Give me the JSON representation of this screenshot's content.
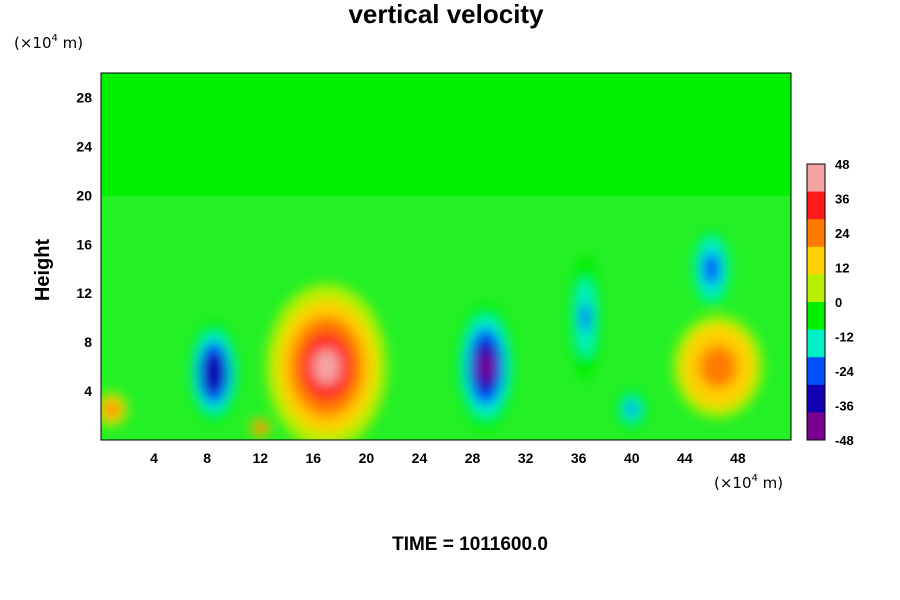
{
  "chart_data": {
    "type": "heatmap",
    "title": "vertical velocity",
    "ylabel": "Height",
    "xunit": {
      "prefix": "(×10",
      "exp": "4",
      "suffix": " m)"
    },
    "yunit": {
      "prefix": "(×10",
      "exp": "4",
      "suffix": " m)"
    },
    "xlim": [
      0,
      52
    ],
    "ylim": [
      0,
      30
    ],
    "xticks": [
      4,
      8,
      12,
      16,
      20,
      24,
      28,
      32,
      36,
      40,
      44,
      48
    ],
    "yticks": [
      4,
      8,
      12,
      16,
      20,
      24,
      28
    ],
    "colorbar": {
      "range": [
        -48,
        48
      ],
      "ticks": [
        48,
        36,
        24,
        12,
        0,
        -12,
        -24,
        -36,
        -48
      ],
      "colors": [
        "#f4a3a3",
        "#ff1b1b",
        "#ff7a00",
        "#ffd000",
        "#b6f000",
        "#00f000",
        "#00f0c8",
        "#0050ff",
        "#1000b0",
        "#7a0090"
      ]
    },
    "features": [
      {
        "x": 17.0,
        "y": 6.0,
        "rx": 4.4,
        "ry": 6.6,
        "value": 48
      },
      {
        "x": 8.5,
        "y": 5.5,
        "rx": 1.7,
        "ry": 4.0,
        "value": -42
      },
      {
        "x": 29.0,
        "y": 6.0,
        "rx": 2.0,
        "ry": 5.0,
        "value": -44
      },
      {
        "x": 36.5,
        "y": 10.0,
        "rx": 1.0,
        "ry": 5.0,
        "value": -26
      },
      {
        "x": 46.0,
        "y": 14.0,
        "rx": 1.3,
        "ry": 3.0,
        "value": -30
      },
      {
        "x": 46.5,
        "y": 6.0,
        "rx": 3.2,
        "ry": 4.0,
        "value": 32
      },
      {
        "x": 12.0,
        "y": 1.0,
        "rx": 0.6,
        "ry": 0.6,
        "value": 40
      },
      {
        "x": 0.8,
        "y": 2.5,
        "rx": 1.0,
        "ry": 1.2,
        "value": 28
      },
      {
        "x": 40.0,
        "y": 2.5,
        "rx": 1.0,
        "ry": 1.5,
        "value": -24
      }
    ],
    "footer": "TIME = 1011600.0"
  }
}
